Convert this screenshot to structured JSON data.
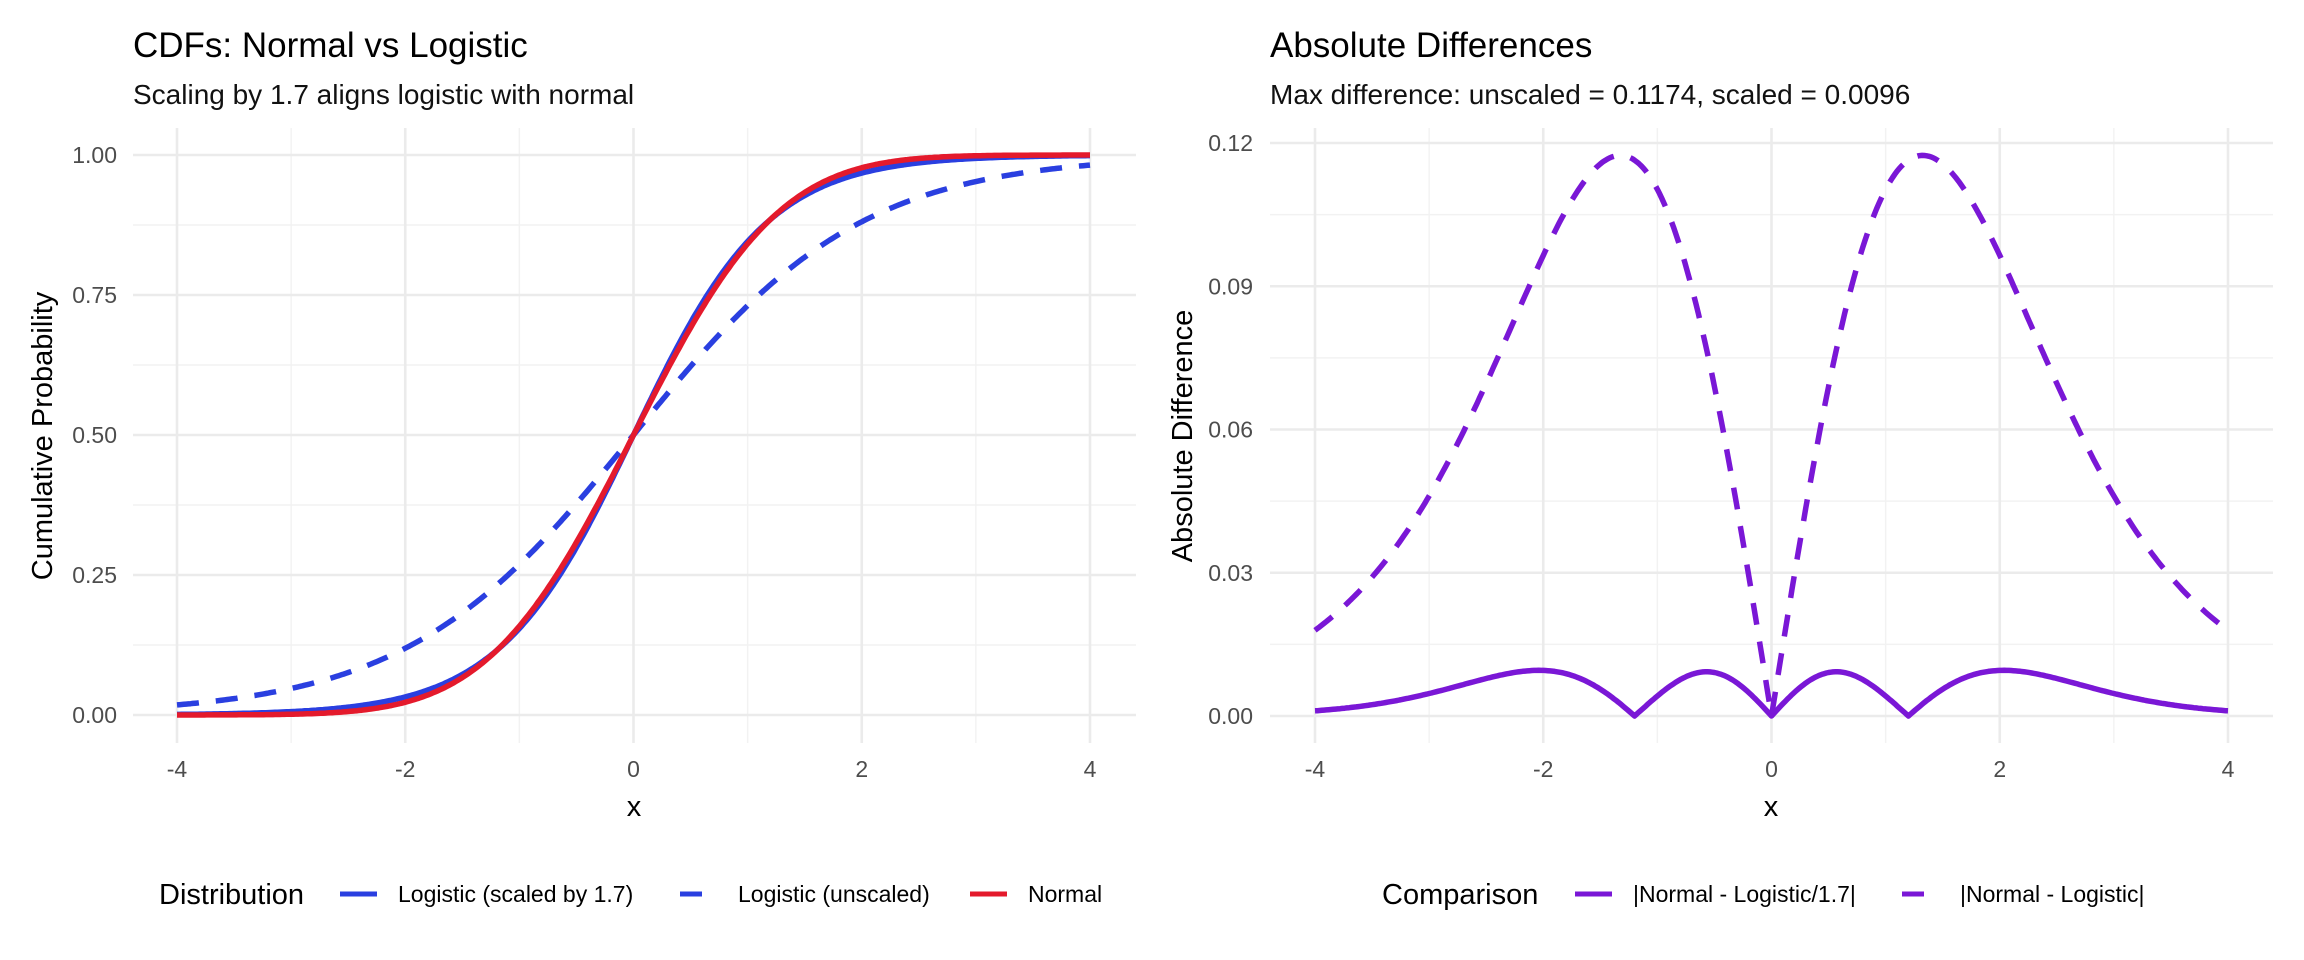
{
  "chart_data": [
    {
      "type": "line",
      "title": "CDFs: Normal vs Logistic",
      "subtitle": "Scaling by 1.7 aligns logistic with normal",
      "xlabel": "x",
      "ylabel": "Cumulative Probability",
      "xlim": [
        -4,
        4
      ],
      "ylim": [
        0,
        1
      ],
      "x_ticks": [
        -4,
        -2,
        0,
        2,
        4
      ],
      "x_tick_labels": [
        "-4",
        "-2",
        "0",
        "2",
        "4"
      ],
      "y_ticks": [
        0,
        0.25,
        0.5,
        0.75,
        1.0
      ],
      "y_tick_labels": [
        "0.00",
        "0.25",
        "0.50",
        "0.75",
        "1.00"
      ],
      "grid": true,
      "legend": {
        "title": "Distribution",
        "placement": "bottom",
        "entries": [
          {
            "label": "Logistic (scaled by 1.7)",
            "color": "#2A3FE0",
            "linetype": "solid"
          },
          {
            "label": "Logistic (unscaled)",
            "color": "#2A3FE0",
            "linetype": "dashed"
          },
          {
            "label": "Normal",
            "color": "#E41A2C",
            "linetype": "solid"
          }
        ]
      },
      "x": [
        -4,
        -3.5,
        -3,
        -2.5,
        -2,
        -1.5,
        -1,
        -0.5,
        0,
        0.5,
        1,
        1.5,
        2,
        2.5,
        3,
        3.5,
        4
      ],
      "series": [
        {
          "name": "Logistic (scaled by 1.7)",
          "color": "#2A3FE0",
          "linetype": "solid",
          "values": [
            0.0011,
            0.0026,
            0.006,
            0.014,
            0.0323,
            0.0724,
            0.1545,
            0.2994,
            0.5,
            0.7006,
            0.8455,
            0.9276,
            0.9677,
            0.986,
            0.994,
            0.9974,
            0.9989
          ]
        },
        {
          "name": "Logistic (unscaled)",
          "color": "#2A3FE0",
          "linetype": "dashed",
          "values": [
            0.018,
            0.0293,
            0.0474,
            0.0759,
            0.1192,
            0.1824,
            0.2689,
            0.3775,
            0.5,
            0.6225,
            0.7311,
            0.8176,
            0.8808,
            0.9241,
            0.9526,
            0.9707,
            0.982
          ]
        },
        {
          "name": "Normal",
          "color": "#E41A2C",
          "linetype": "solid",
          "values": [
            3e-05,
            0.0002,
            0.0013,
            0.0062,
            0.0228,
            0.0668,
            0.1587,
            0.3085,
            0.5,
            0.6915,
            0.8413,
            0.9332,
            0.9772,
            0.9938,
            0.9987,
            0.9998,
            0.99997
          ]
        }
      ]
    },
    {
      "type": "line",
      "title": "Absolute Differences",
      "subtitle": "Max difference: unscaled = 0.1174, scaled = 0.0096",
      "xlabel": "x",
      "ylabel": "Absolute Difference",
      "xlim": [
        -4,
        4
      ],
      "ylim": [
        0,
        0.12
      ],
      "x_ticks": [
        -4,
        -2,
        0,
        2,
        4
      ],
      "x_tick_labels": [
        "-4",
        "-2",
        "0",
        "2",
        "4"
      ],
      "y_ticks": [
        0,
        0.03,
        0.06,
        0.09,
        0.12
      ],
      "y_tick_labels": [
        "0.00",
        "0.03",
        "0.06",
        "0.09",
        "0.12"
      ],
      "grid": true,
      "legend": {
        "title": "Comparison",
        "placement": "bottom",
        "entries": [
          {
            "label": "|Normal - Logistic/1.7|",
            "color": "#7A17D6",
            "linetype": "solid"
          },
          {
            "label": "|Normal - Logistic|",
            "color": "#7A17D6",
            "linetype": "dashed"
          }
        ]
      },
      "x": [
        -4,
        -3.5,
        -3,
        -2.5,
        -2,
        -1.5,
        -1.2,
        -1,
        -0.6,
        -0.5,
        0,
        0.5,
        0.6,
        1,
        1.2,
        1.5,
        2,
        2.5,
        3,
        3.5,
        4
      ],
      "series": [
        {
          "name": "|Normal - Logistic/1.7|",
          "color": "#7A17D6",
          "linetype": "solid",
          "values": [
            0.0011,
            0.0024,
            0.0047,
            0.0078,
            0.0095,
            0.0056,
            0.0,
            0.0042,
            0.0095,
            0.0091,
            0.0,
            0.0091,
            0.0095,
            0.0042,
            0.0,
            0.0056,
            0.0095,
            0.0078,
            0.0047,
            0.0024,
            0.0011
          ]
        },
        {
          "name": "|Normal - Logistic|",
          "color": "#7A17D6",
          "linetype": "dashed",
          "values": [
            0.018,
            0.0291,
            0.0461,
            0.0697,
            0.0964,
            0.1156,
            0.1172,
            0.1102,
            0.0872,
            0.069,
            0.0,
            0.069,
            0.0872,
            0.1102,
            0.1172,
            0.1156,
            0.0964,
            0.0697,
            0.0461,
            0.0291,
            0.018
          ]
        }
      ]
    }
  ]
}
